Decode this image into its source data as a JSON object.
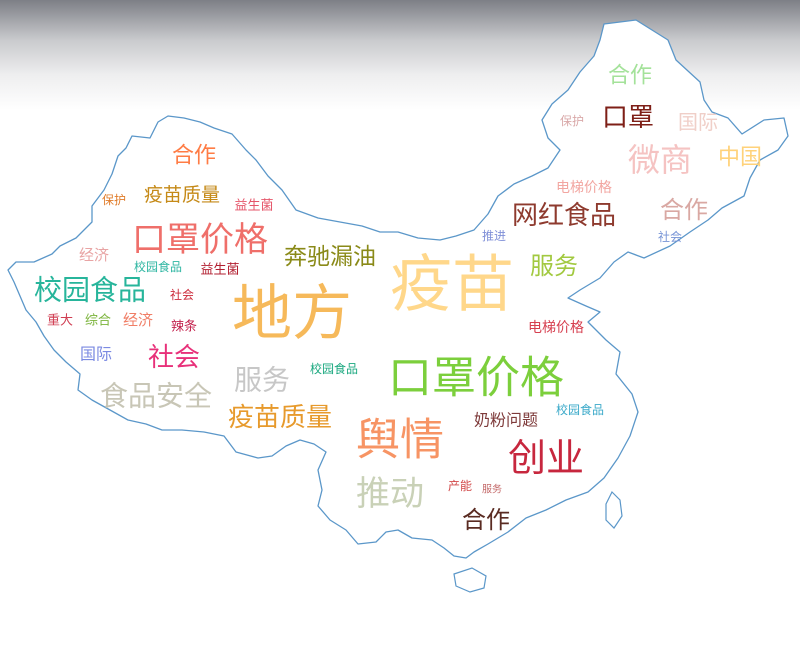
{
  "chart_data": {
    "type": "wordcloud",
    "shape": "china-map",
    "words": [
      {
        "text": "疫苗",
        "weight": 100,
        "color": "#ffd78a"
      },
      {
        "text": "地方",
        "weight": 97,
        "color": "#f6b95a"
      },
      {
        "text": "口罩价格",
        "weight": 90,
        "color": "#7ccf3c"
      },
      {
        "text": "舆情",
        "weight": 87,
        "color": "#f79464"
      },
      {
        "text": "口罩价格",
        "weight": 80,
        "color": "#ef6f6a"
      },
      {
        "text": "创业",
        "weight": 78,
        "color": "#c7273e"
      },
      {
        "text": "推动",
        "weight": 70,
        "color": "#c9d1b7"
      },
      {
        "text": "微商",
        "weight": 68,
        "color": "#f5c3c2"
      },
      {
        "text": "服务",
        "weight": 60,
        "color": "#c7c7c7"
      },
      {
        "text": "食品安全",
        "weight": 58,
        "color": "#c8c6b6"
      },
      {
        "text": "校园食品",
        "weight": 57,
        "color": "#27b59b"
      },
      {
        "text": "网红食品",
        "weight": 56,
        "color": "#8e3a2e"
      },
      {
        "text": "疫苗质量",
        "weight": 55,
        "color": "#e79a2c"
      },
      {
        "text": "社会",
        "weight": 55,
        "color": "#e8317a"
      },
      {
        "text": "口罩",
        "weight": 55,
        "color": "#7e1f17"
      },
      {
        "text": "合作",
        "weight": 52,
        "color": "#5a2b22"
      },
      {
        "text": "服务",
        "weight": 52,
        "color": "#a2c940"
      },
      {
        "text": "奔驰漏油",
        "weight": 50,
        "color": "#8a8a18"
      },
      {
        "text": "合作",
        "weight": 50,
        "color": "#d9a8a3"
      },
      {
        "text": "中国",
        "weight": 50,
        "color": "#ffd27a"
      },
      {
        "text": "国际",
        "weight": 49,
        "color": "#f0cfc8"
      },
      {
        "text": "合作",
        "weight": 48,
        "color": "#ff7c45"
      },
      {
        "text": "合作",
        "weight": 48,
        "color": "#a4e29a"
      },
      {
        "text": "疫苗质量",
        "weight": 44,
        "color": "#c58a18"
      },
      {
        "text": "奶粉问题",
        "weight": 34,
        "color": "#7e3a3a"
      },
      {
        "text": "电梯价格",
        "weight": 33,
        "color": "#f2a6a1"
      },
      {
        "text": "电梯价格",
        "weight": 32,
        "color": "#d63f4f"
      },
      {
        "text": "国际",
        "weight": 34,
        "color": "#7b8ae2"
      },
      {
        "text": "经济",
        "weight": 33,
        "color": "#e8a4a4"
      },
      {
        "text": "经济",
        "weight": 33,
        "color": "#f07e66"
      },
      {
        "text": "益生菌",
        "weight": 30,
        "color": "#e5566a"
      },
      {
        "text": "益生菌",
        "weight": 30,
        "color": "#b21f30"
      },
      {
        "text": "校园食品",
        "weight": 30,
        "color": "#2eb6a2"
      },
      {
        "text": "校园食品",
        "weight": 28,
        "color": "#1aa87f"
      },
      {
        "text": "校园食品",
        "weight": 28,
        "color": "#3aa9c9"
      },
      {
        "text": "重大",
        "weight": 28,
        "color": "#d03d52"
      },
      {
        "text": "综合",
        "weight": 28,
        "color": "#7ab33a"
      },
      {
        "text": "辣条",
        "weight": 28,
        "color": "#c3224d"
      },
      {
        "text": "社会",
        "weight": 28,
        "color": "#cc2a3a"
      },
      {
        "text": "社会",
        "weight": 28,
        "color": "#7794d6"
      },
      {
        "text": "推进",
        "weight": 27,
        "color": "#8090d8"
      },
      {
        "text": "保护",
        "weight": 25,
        "color": "#e07c2a"
      },
      {
        "text": "保护",
        "weight": 24,
        "color": "#d9a8a8"
      },
      {
        "text": "产能",
        "weight": 27,
        "color": "#d24a4a"
      },
      {
        "text": "服务",
        "weight": 22,
        "color": "#c46a6a"
      }
    ]
  }
}
